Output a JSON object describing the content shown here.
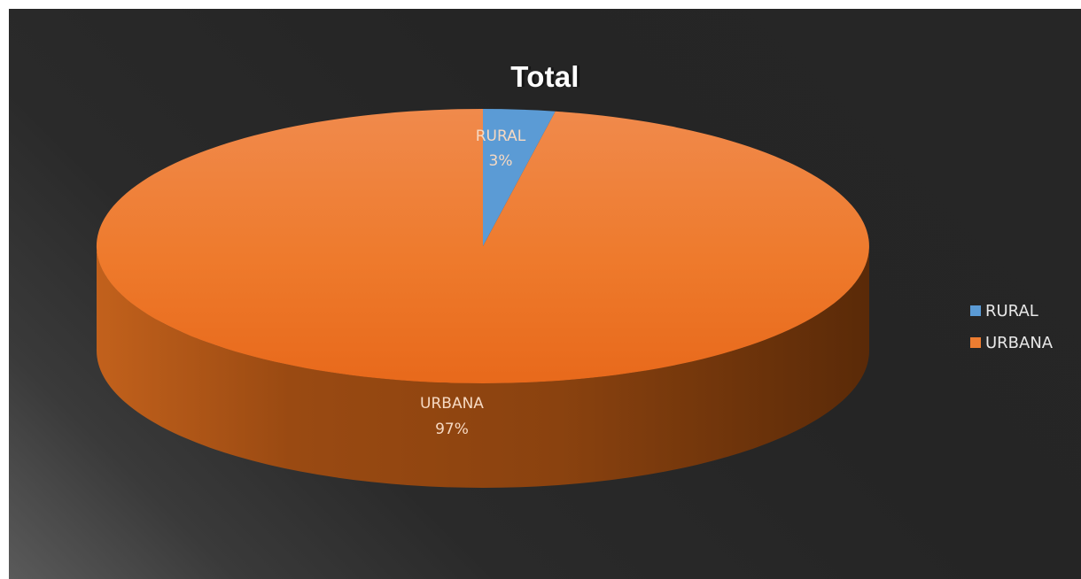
{
  "chart_data": {
    "type": "pie",
    "title": "Total",
    "categories": [
      "RURAL",
      "URBANA"
    ],
    "values": [
      3,
      97
    ],
    "data_labels": [
      {
        "category": "RURAL",
        "percent": "3%"
      },
      {
        "category": "URBANA",
        "percent": "97%"
      }
    ],
    "colors": [
      "#5b9bd5",
      "#ed7d31"
    ],
    "style": "3d",
    "legend": {
      "placement": "right",
      "entries": [
        "RURAL",
        "URBANA"
      ]
    }
  }
}
